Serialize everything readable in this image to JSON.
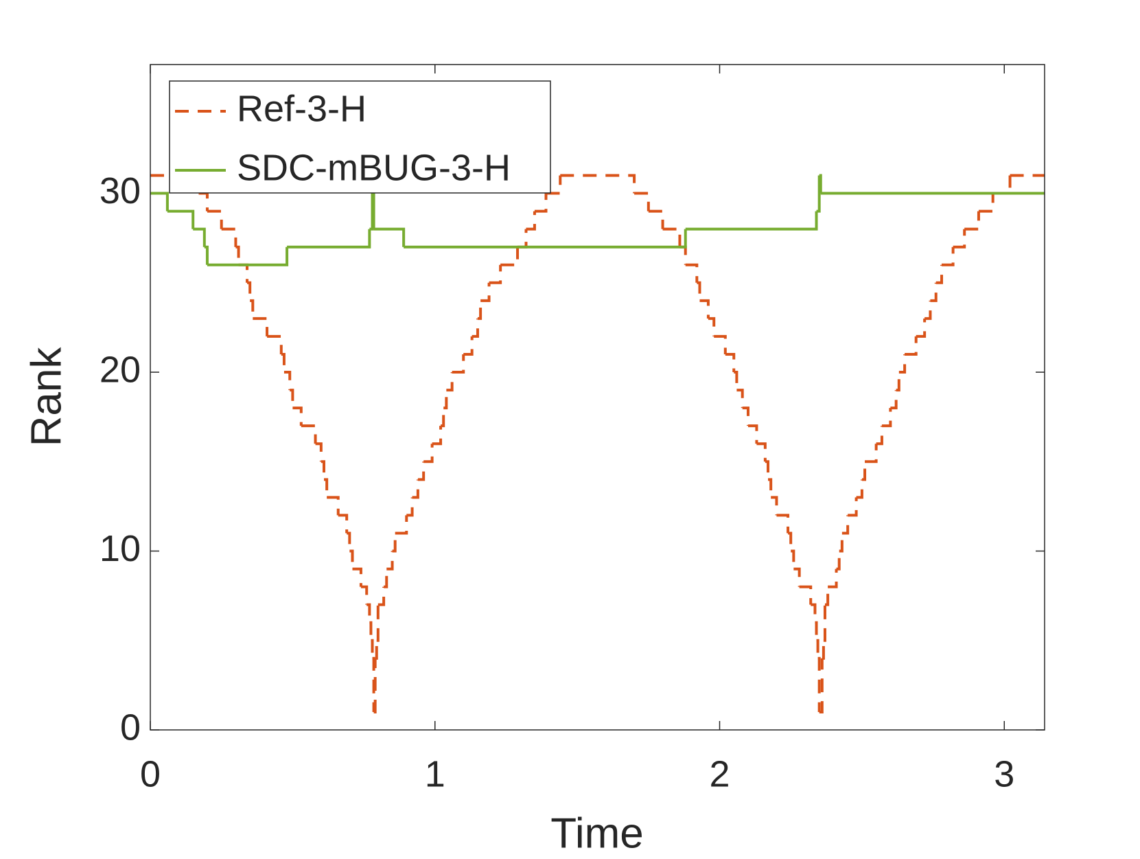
{
  "chart_data": {
    "type": "line",
    "step": "post",
    "xlabel": "Time",
    "ylabel": "Rank",
    "xlim": [
      0,
      3.1416
    ],
    "ylim": [
      0,
      37.2
    ],
    "xticks": [
      0,
      1,
      2,
      3
    ],
    "yticks": [
      0,
      10,
      20,
      30
    ],
    "grid": false,
    "legend": "northwest",
    "series": [
      {
        "name": "Ref-3-H",
        "color": "#d95319",
        "dash": true,
        "x": [
          0,
          0.17,
          0.2,
          0.25,
          0.3,
          0.31,
          0.34,
          0.35,
          0.36,
          0.41,
          0.46,
          0.47,
          0.49,
          0.5,
          0.53,
          0.58,
          0.6,
          0.61,
          0.62,
          0.66,
          0.69,
          0.7,
          0.71,
          0.74,
          0.76,
          0.77,
          0.775,
          0.78,
          0.785,
          0.79,
          0.795,
          0.8,
          0.82,
          0.83,
          0.85,
          0.86,
          0.9,
          0.92,
          0.94,
          0.96,
          0.99,
          1.02,
          1.03,
          1.04,
          1.06,
          1.1,
          1.13,
          1.15,
          1.16,
          1.19,
          1.23,
          1.29,
          1.32,
          1.35,
          1.39,
          1.44,
          1.7,
          1.75,
          1.8,
          1.86,
          1.88,
          1.92,
          1.93,
          1.96,
          1.98,
          2.02,
          2.05,
          2.06,
          2.08,
          2.1,
          2.13,
          2.16,
          2.17,
          2.18,
          2.2,
          2.24,
          2.25,
          2.26,
          2.28,
          2.32,
          2.335,
          2.34,
          2.345,
          2.35,
          2.36,
          2.365,
          2.37,
          2.38,
          2.41,
          2.42,
          2.43,
          2.45,
          2.48,
          2.5,
          2.51,
          2.55,
          2.57,
          2.6,
          2.62,
          2.63,
          2.65,
          2.69,
          2.72,
          2.74,
          2.76,
          2.78,
          2.82,
          2.86,
          2.91,
          2.96,
          3.02
        ],
        "values": [
          31,
          30,
          29,
          28,
          27,
          26,
          25,
          24,
          23,
          22,
          21,
          20,
          19,
          18,
          17,
          16,
          15,
          14,
          13,
          12,
          11,
          10,
          9,
          8,
          7,
          6,
          5,
          4,
          1,
          4,
          5,
          7,
          8,
          9,
          10,
          11,
          12,
          13,
          14,
          15,
          16,
          17,
          18,
          19,
          20,
          21,
          22,
          23,
          24,
          25,
          26,
          27,
          28,
          29,
          30,
          31,
          30,
          29,
          28,
          27,
          26,
          25,
          24,
          23,
          22,
          21,
          20,
          19,
          18,
          17,
          16,
          15,
          14,
          13,
          12,
          11,
          10,
          9,
          8,
          7,
          6,
          5,
          4,
          1,
          4,
          5,
          7,
          8,
          9,
          10,
          11,
          12,
          13,
          14,
          15,
          16,
          17,
          18,
          19,
          20,
          21,
          22,
          23,
          24,
          25,
          26,
          27,
          28,
          29,
          30,
          31
        ]
      },
      {
        "name": "SDC-mBUG-3-H",
        "color": "#77ac30",
        "dash": false,
        "x": [
          0,
          0.06,
          0.15,
          0.19,
          0.2,
          0.48,
          0.77,
          0.78,
          0.785,
          0.89,
          1.88,
          2.34,
          2.35,
          2.355
        ],
        "values": [
          30,
          29,
          28,
          27,
          26,
          27,
          28,
          30,
          28,
          27,
          28,
          29,
          31,
          30
        ]
      }
    ]
  }
}
